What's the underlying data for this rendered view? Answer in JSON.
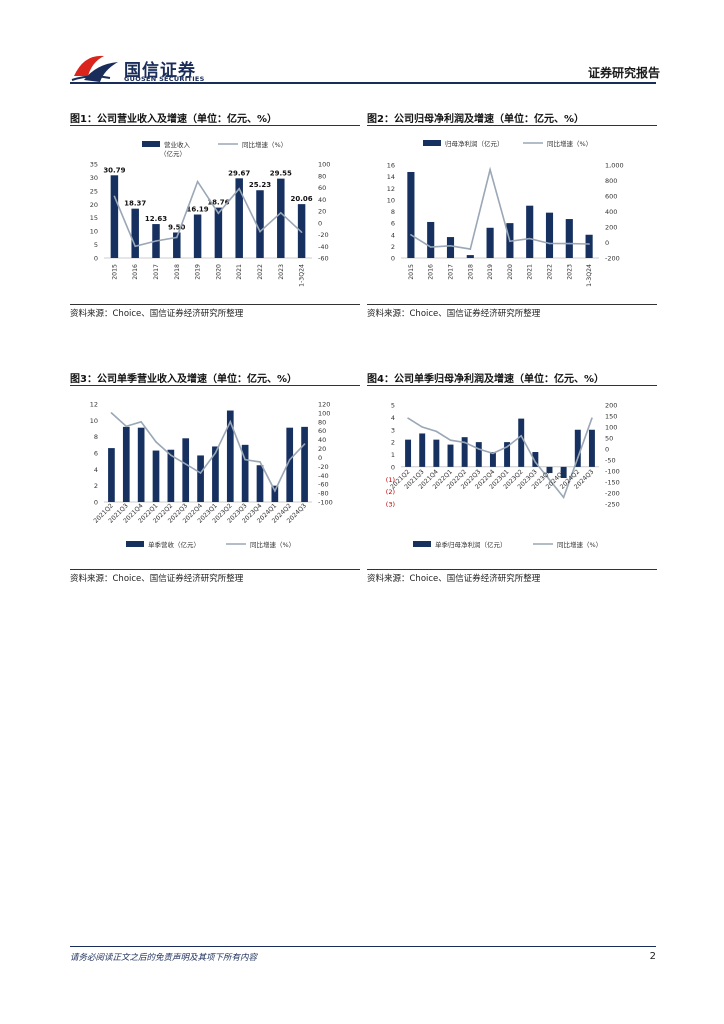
{
  "header": {
    "logo_cn": "国信证券",
    "logo_en": "GUOSEN SECURITIES",
    "report_type": "证券研究报告"
  },
  "footer": {
    "disclaimer": "请务必阅读正文之后的免责声明及其项下所有内容",
    "page_number": "2"
  },
  "colors": {
    "bar": "#16305f",
    "line": "#9aa7b6",
    "brand": "#1a2d5a",
    "logo_red": "#d9251c"
  },
  "panels": [
    {
      "title": "图1：公司营业收入及增速（单位：亿元、%）",
      "source": "资料来源：Choice、国信证券经济研究所整理",
      "legend_bar": "营业收入",
      "legend_bar_sub": "（亿元）",
      "legend_line": "同比增速（%）"
    },
    {
      "title": "图2：公司归母净利润及增速（单位：亿元、%）",
      "source": "资料来源：Choice、国信证券经济研究所整理",
      "legend_bar": "归母净利润（亿元）",
      "legend_line": "同比增速（%）"
    },
    {
      "title": "图3：公司单季营业收入及增速（单位：亿元、%）",
      "source": "资料来源：Choice、国信证券经济研究所整理",
      "legend_bar": "单季营收（亿元）",
      "legend_line": "同比增速（%）"
    },
    {
      "title": "图4：公司单季归母净利润及增速（单位：亿元、%）",
      "source": "资料来源：Choice、国信证券经济研究所整理",
      "legend_bar": "单季归母净利润（亿元）",
      "legend_line": "同比增速（%）"
    }
  ],
  "chart_data": [
    {
      "type": "bar",
      "categories": [
        "2015",
        "2016",
        "2017",
        "2018",
        "2019",
        "2020",
        "2021",
        "2022",
        "2023",
        "1-3Q24"
      ],
      "series": [
        {
          "name": "营业收入（亿元）",
          "type": "bar",
          "axis": "left",
          "values": [
            30.79,
            18.37,
            12.63,
            9.5,
            16.19,
            18.76,
            29.67,
            25.23,
            29.55,
            20.06
          ],
          "labels": [
            "30.79",
            "18.37",
            "12.63",
            "9.50",
            "16.19",
            "18.76",
            "29.67",
            "25.23",
            "29.55",
            "20.06"
          ]
        },
        {
          "name": "同比增速（%）",
          "type": "line",
          "axis": "right",
          "values": [
            45,
            -40,
            -31,
            -25,
            70,
            16,
            58,
            -15,
            17,
            -16
          ]
        }
      ],
      "ylim_left": [
        0,
        35
      ],
      "yticks_left": [
        "0",
        "5",
        "10",
        "15",
        "20",
        "25",
        "30",
        "35"
      ],
      "ylim_right": [
        -60,
        100
      ],
      "yticks_right": [
        "-60",
        "-40",
        "-20",
        "0",
        "20",
        "40",
        "60",
        "80",
        "100"
      ]
    },
    {
      "type": "bar",
      "categories": [
        "2015",
        "2016",
        "2017",
        "2018",
        "2019",
        "2020",
        "2021",
        "2022",
        "2023",
        "1-3Q24"
      ],
      "series": [
        {
          "name": "归母净利润（亿元）",
          "type": "bar",
          "axis": "left",
          "values": [
            14.8,
            6.2,
            3.6,
            0.5,
            5.2,
            6.0,
            9.0,
            7.8,
            6.7,
            4.0
          ]
        },
        {
          "name": "同比增速（%）",
          "type": "line",
          "axis": "right",
          "values": [
            100,
            -58,
            -42,
            -85,
            940,
            15,
            50,
            -13,
            -14,
            -20
          ]
        }
      ],
      "ylim_left": [
        0,
        16
      ],
      "yticks_left": [
        "0",
        "2",
        "4",
        "6",
        "8",
        "10",
        "12",
        "14",
        "16"
      ],
      "ylim_right": [
        -200,
        1000
      ],
      "yticks_right": [
        "-200",
        "0",
        "200",
        "400",
        "600",
        "800",
        "1,000"
      ]
    },
    {
      "type": "bar",
      "categories": [
        "2021Q2",
        "2021Q3",
        "2021Q4",
        "2022Q1",
        "2022Q2",
        "2022Q3",
        "2022Q4",
        "2023Q1",
        "2023Q2",
        "2023Q3",
        "2023Q4",
        "2024Q1",
        "2024Q2",
        "2024Q3"
      ],
      "series": [
        {
          "name": "单季营收（亿元）",
          "type": "bar",
          "axis": "left",
          "values": [
            6.6,
            9.2,
            9.1,
            6.3,
            6.4,
            7.8,
            5.7,
            6.8,
            11.2,
            7.0,
            4.5,
            2.0,
            9.1,
            9.2
          ]
        },
        {
          "name": "同比增速（%）",
          "type": "line",
          "axis": "right",
          "values": [
            100,
            70,
            80,
            35,
            5,
            -15,
            -35,
            10,
            80,
            -5,
            -10,
            -75,
            -5,
            30
          ]
        }
      ],
      "ylim_left": [
        0,
        12
      ],
      "yticks_left": [
        "0",
        "2",
        "4",
        "6",
        "8",
        "10",
        "12"
      ],
      "ylim_right": [
        -100,
        120
      ],
      "yticks_right": [
        "-100",
        "-80",
        "-60",
        "-40",
        "-20",
        "0",
        "20",
        "40",
        "60",
        "80",
        "100",
        "120"
      ]
    },
    {
      "type": "bar",
      "categories": [
        "2021Q2",
        "2021Q3",
        "2021Q4",
        "2022Q1",
        "2022Q2",
        "2022Q3",
        "2022Q4",
        "2023Q1",
        "2023Q2",
        "2023Q3",
        "2023Q4",
        "2024Q1",
        "2024Q2",
        "2024Q3"
      ],
      "series": [
        {
          "name": "单季归母净利润（亿元）",
          "type": "bar",
          "axis": "left",
          "values": [
            2.2,
            2.7,
            2.2,
            1.8,
            2.4,
            2.0,
            1.2,
            2.0,
            3.9,
            1.2,
            -0.5,
            -0.9,
            3.0,
            3.0
          ]
        },
        {
          "name": "同比增速（%）",
          "type": "line",
          "axis": "right",
          "values": [
            140,
            100,
            80,
            40,
            30,
            0,
            -20,
            10,
            60,
            -60,
            -140,
            -220,
            -40,
            140
          ]
        }
      ],
      "ylim_left": [
        -3,
        5
      ],
      "yticks_left": [
        "(3)",
        "(2)",
        "(1)",
        "0",
        "1",
        "2",
        "3",
        "4",
        "5"
      ],
      "ylim_right": [
        -250,
        200
      ],
      "yticks_right": [
        "-250",
        "-200",
        "-150",
        "-100",
        "-50",
        "0",
        "50",
        "100",
        "150",
        "200"
      ]
    }
  ]
}
